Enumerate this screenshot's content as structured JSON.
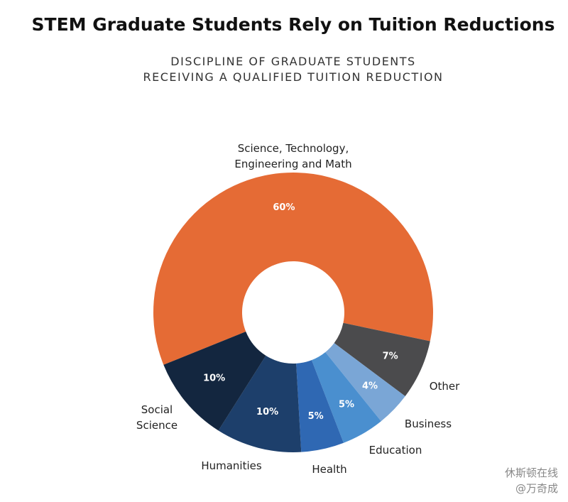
{
  "chart_data": {
    "type": "donut",
    "title": "STEM Graduate Students Rely on Tuition Reductions",
    "subtitle": "DISCIPLINE OF GRADUATE STUDENTS RECEIVING A QUALIFIED TUITION REDUCTION",
    "categories": [
      "Science, Technology, Engineering and Math",
      "Other",
      "Business",
      "Education",
      "Health",
      "Humanities",
      "Social Science"
    ],
    "values": [
      60,
      7,
      4,
      5,
      5,
      10,
      10
    ],
    "value_labels": [
      "60%",
      "7%",
      "4%",
      "5%",
      "5%",
      "10%",
      "10%"
    ],
    "colors": [
      "#e56b35",
      "#4b4b4d",
      "#7aa6d6",
      "#4a8fcf",
      "#2f68b3",
      "#1d3f6b",
      "#13263f"
    ]
  },
  "watermark": {
    "line1": "休斯顿在线",
    "line2": "@万奇成"
  }
}
